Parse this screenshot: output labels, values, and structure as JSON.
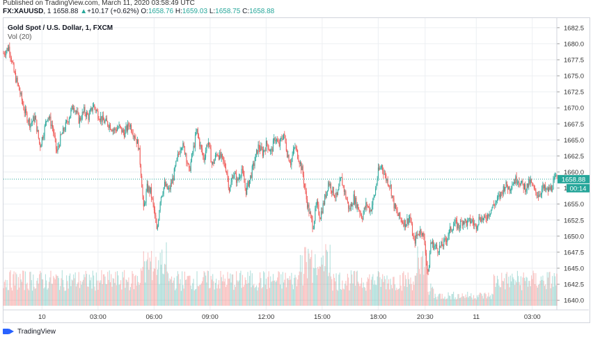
{
  "header": {
    "published": "Published on TradingView.com, March 11, 2020 03:58:49 UTC",
    "symbol": "FX:XAUUSD",
    "interval": "1",
    "last": "1658.88",
    "change": "+10.17 (+0.62%)",
    "o_label": "O:",
    "o_value": "1658.76",
    "h_label": "H:",
    "h_value": "1659.03",
    "l_label": "L:",
    "l_value": "1658.75",
    "c_label": "C:",
    "c_value": "1658.88"
  },
  "legend": {
    "title": "Gold Spot / U.S. Dollar, 1, FXCM",
    "volume": "Vol (20)"
  },
  "footer": {
    "brand": "TradingView"
  },
  "colors": {
    "up": "#26a69a",
    "down": "#ef5350",
    "vol_up": "#26a69a",
    "vol_down": "#ef5350",
    "price_tag": "#26a69a",
    "grid": "#eceff2"
  },
  "chart_data": {
    "type": "candlestick",
    "title": "Gold Spot / U.S. Dollar, 1, FXCM",
    "yticks": [
      1640.0,
      1642.5,
      1645.0,
      1647.5,
      1650.0,
      1652.5,
      1655.0,
      1657.5,
      1660.0,
      1662.5,
      1665.0,
      1667.5,
      1670.0,
      1672.5,
      1675.0,
      1677.5,
      1680.0,
      1682.5
    ],
    "ylim": [
      1638.5,
      1684.0
    ],
    "xticks": [
      {
        "label": "10",
        "t": 55
      },
      {
        "label": "03:00",
        "t": 135
      },
      {
        "label": "06:00",
        "t": 215
      },
      {
        "label": "09:00",
        "t": 295
      },
      {
        "label": "12:00",
        "t": 375
      },
      {
        "label": "15:00",
        "t": 455
      },
      {
        "label": "18:00",
        "t": 535
      },
      {
        "label": "20:30",
        "t": 602
      },
      {
        "label": "11",
        "t": 675
      },
      {
        "label": "03:00",
        "t": 755
      }
    ],
    "xlim": [
      0,
      790
    ],
    "close_path": [
      [
        0,
        1678.5
      ],
      [
        8,
        1679.5
      ],
      [
        15,
        1675.5
      ],
      [
        22,
        1673
      ],
      [
        30,
        1669.5
      ],
      [
        38,
        1667.5
      ],
      [
        45,
        1668.5
      ],
      [
        52,
        1664
      ],
      [
        58,
        1666.5
      ],
      [
        63,
        1669
      ],
      [
        70,
        1667
      ],
      [
        76,
        1663
      ],
      [
        82,
        1665.5
      ],
      [
        88,
        1667
      ],
      [
        95,
        1669
      ],
      [
        100,
        1670.5
      ],
      [
        108,
        1668
      ],
      [
        115,
        1669.5
      ],
      [
        122,
        1668.5
      ],
      [
        128,
        1670.5
      ],
      [
        135,
        1669
      ],
      [
        142,
        1668
      ],
      [
        150,
        1667.5
      ],
      [
        158,
        1666.5
      ],
      [
        165,
        1667
      ],
      [
        172,
        1666
      ],
      [
        180,
        1667.5
      ],
      [
        188,
        1665.5
      ],
      [
        193,
        1664
      ],
      [
        197,
        1659
      ],
      [
        200,
        1654
      ],
      [
        205,
        1657.5
      ],
      [
        210,
        1657
      ],
      [
        215,
        1654
      ],
      [
        219,
        1650.5
      ],
      [
        224,
        1656
      ],
      [
        230,
        1658
      ],
      [
        236,
        1657
      ],
      [
        242,
        1659
      ],
      [
        248,
        1662
      ],
      [
        254,
        1664.5
      ],
      [
        260,
        1663
      ],
      [
        265,
        1660
      ],
      [
        270,
        1663
      ],
      [
        276,
        1666.5
      ],
      [
        281,
        1664
      ],
      [
        286,
        1662
      ],
      [
        292,
        1665
      ],
      [
        298,
        1661
      ],
      [
        305,
        1663
      ],
      [
        312,
        1662
      ],
      [
        318,
        1660.5
      ],
      [
        323,
        1657
      ],
      [
        328,
        1660
      ],
      [
        334,
        1658.5
      ],
      [
        340,
        1660.5
      ],
      [
        346,
        1657
      ],
      [
        352,
        1659
      ],
      [
        358,
        1661.5
      ],
      [
        364,
        1664
      ],
      [
        370,
        1663
      ],
      [
        376,
        1664.5
      ],
      [
        382,
        1663
      ],
      [
        388,
        1665.5
      ],
      [
        393,
        1664
      ],
      [
        400,
        1666
      ],
      [
        405,
        1663
      ],
      [
        410,
        1661.5
      ],
      [
        416,
        1664
      ],
      [
        422,
        1662
      ],
      [
        427,
        1660
      ],
      [
        432,
        1656
      ],
      [
        437,
        1653.5
      ],
      [
        442,
        1651.5
      ],
      [
        447,
        1655
      ],
      [
        452,
        1653
      ],
      [
        458,
        1655.5
      ],
      [
        464,
        1658.5
      ],
      [
        470,
        1657
      ],
      [
        476,
        1656
      ],
      [
        482,
        1659
      ],
      [
        488,
        1656.5
      ],
      [
        494,
        1654
      ],
      [
        500,
        1656
      ],
      [
        506,
        1654.5
      ],
      [
        512,
        1653
      ],
      [
        518,
        1655
      ],
      [
        524,
        1654
      ],
      [
        530,
        1656.5
      ],
      [
        535,
        1660
      ],
      [
        540,
        1661
      ],
      [
        546,
        1659
      ],
      [
        552,
        1658
      ],
      [
        557,
        1655
      ],
      [
        562,
        1653.5
      ],
      [
        568,
        1652.5
      ],
      [
        574,
        1652
      ],
      [
        580,
        1653
      ],
      [
        586,
        1649
      ],
      [
        592,
        1650.5
      ],
      [
        597,
        1651
      ],
      [
        602,
        1648.5
      ],
      [
        606,
        1643.5
      ],
      [
        610,
        1649
      ],
      [
        615,
        1648.5
      ],
      [
        620,
        1648
      ],
      [
        626,
        1648.5
      ],
      [
        632,
        1649.5
      ],
      [
        638,
        1651
      ],
      [
        644,
        1652
      ],
      [
        650,
        1651.5
      ],
      [
        656,
        1652.5
      ],
      [
        662,
        1652
      ],
      [
        668,
        1652.5
      ],
      [
        674,
        1651.5
      ],
      [
        680,
        1653
      ],
      [
        686,
        1652.5
      ],
      [
        692,
        1653.5
      ],
      [
        698,
        1654.5
      ],
      [
        704,
        1655.5
      ],
      [
        710,
        1656.5
      ],
      [
        716,
        1658
      ],
      [
        722,
        1657.5
      ],
      [
        728,
        1658.5
      ],
      [
        734,
        1659
      ],
      [
        740,
        1658
      ],
      [
        746,
        1657.5
      ],
      [
        752,
        1658.5
      ],
      [
        758,
        1657
      ],
      [
        764,
        1656.5
      ],
      [
        770,
        1657.5
      ],
      [
        776,
        1657
      ],
      [
        782,
        1657.5
      ],
      [
        788,
        1659
      ],
      [
        790,
        1658.88
      ]
    ],
    "price_tags": {
      "price": "1658.88",
      "countdown": "00:14"
    },
    "volume_series": "Vol (20)"
  }
}
